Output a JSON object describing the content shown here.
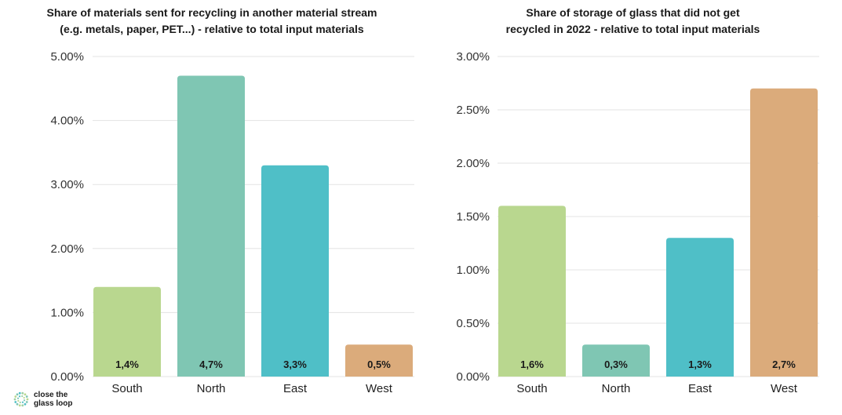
{
  "chart_data": [
    {
      "type": "bar",
      "title": "Share of materials sent for recycling in another material stream (e.g. metals, paper, PET...) - relative to total input materials",
      "title_lines": [
        "Share of materials sent for recycling in another material stream",
        "(e.g. metals, paper, PET...) - relative to total input materials"
      ],
      "categories": [
        "South",
        "North",
        "East",
        "West"
      ],
      "values": [
        1.4,
        4.7,
        3.3,
        0.5
      ],
      "data_labels": [
        "1,4%",
        "4,7%",
        "3,3%",
        "0,5%"
      ],
      "colors": [
        "#b9d78f",
        "#7fc6b3",
        "#4fbfc7",
        "#dbab7b"
      ],
      "ylim": [
        0,
        5
      ],
      "yticks": [
        0,
        1,
        2,
        3,
        4,
        5
      ],
      "ytick_labels": [
        "0.00%",
        "1.00%",
        "2.00%",
        "3.00%",
        "4.00%",
        "5.00%"
      ],
      "xlabel": "",
      "ylabel": "",
      "grid": true
    },
    {
      "type": "bar",
      "title": "Share of storage of glass that did not get recycled in 2022 - relative to total input materials",
      "title_lines": [
        "Share of storage of glass that did not get",
        "recycled in 2022 - relative to total input materials"
      ],
      "categories": [
        "South",
        "North",
        "East",
        "West"
      ],
      "values": [
        1.6,
        0.3,
        1.3,
        2.7
      ],
      "data_labels": [
        "1,6%",
        "0,3%",
        "1,3%",
        "2,7%"
      ],
      "colors": [
        "#b9d78f",
        "#7fc6b3",
        "#4fbfc7",
        "#dbab7b"
      ],
      "ylim": [
        0,
        3
      ],
      "yticks": [
        0,
        0.5,
        1,
        1.5,
        2,
        2.5,
        3
      ],
      "ytick_labels": [
        "0.00%",
        "0.50%",
        "1.00%",
        "1.50%",
        "2.00%",
        "2.50%",
        "3.00%"
      ],
      "xlabel": "",
      "ylabel": "",
      "grid": true
    }
  ],
  "logo": {
    "line1": "close the",
    "line2": "glass loop",
    "icon": "dotted-circle-logo-icon"
  }
}
